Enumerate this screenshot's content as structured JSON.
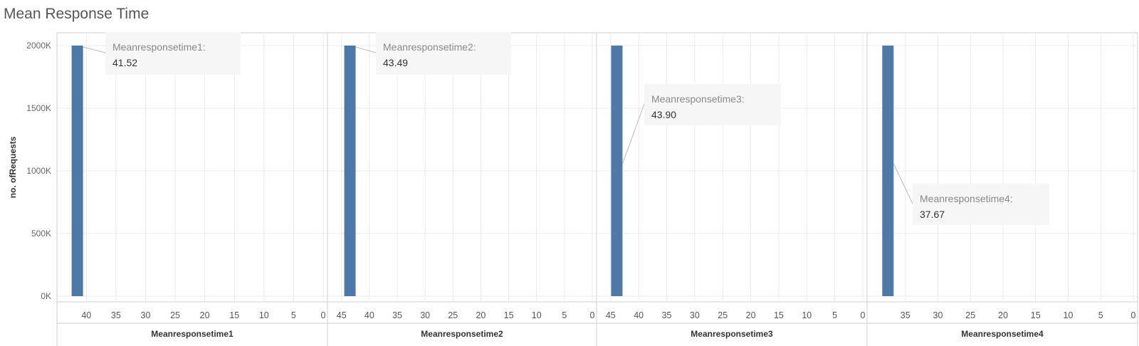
{
  "chart_data": {
    "type": "bar",
    "title": "Mean Response Time",
    "ylabel": "no. ofRequests",
    "yticks": [
      "0K",
      "500K",
      "1000K",
      "1500K",
      "2000K"
    ],
    "ylim": [
      0,
      2000
    ],
    "grid": true,
    "panels": [
      {
        "xlabel": "Meanresponsetime1",
        "xlim": [
          44,
          0
        ],
        "xticks": [
          "40",
          "35",
          "30",
          "25",
          "20",
          "15",
          "10",
          "5",
          "0"
        ],
        "bar": {
          "x": 41.52,
          "value": 2000
        },
        "annotation": {
          "name": "Meanresponsetime1:",
          "value": "41.52"
        }
      },
      {
        "xlabel": "Meanresponsetime2",
        "xlim": [
          46.5,
          0
        ],
        "xticks": [
          "45",
          "40",
          "35",
          "30",
          "25",
          "20",
          "15",
          "10",
          "5",
          "0"
        ],
        "bar": {
          "x": 43.49,
          "value": 2000
        },
        "annotation": {
          "name": "Meanresponsetime2:",
          "value": "43.49"
        }
      },
      {
        "xlabel": "Meanresponsetime3",
        "xlim": [
          46.5,
          0
        ],
        "xticks": [
          "45",
          "40",
          "35",
          "30",
          "25",
          "20",
          "15",
          "10",
          "5",
          "0"
        ],
        "bar": {
          "x": 43.9,
          "value": 2000
        },
        "annotation": {
          "name": "Meanresponsetime3:",
          "value": "43.90"
        }
      },
      {
        "xlabel": "Meanresponsetime4",
        "xlim": [
          40,
          0
        ],
        "xticks": [
          "35",
          "30",
          "25",
          "20",
          "15",
          "10",
          "5",
          "0"
        ],
        "bar": {
          "x": 37.67,
          "value": 2000
        },
        "annotation": {
          "name": "Meanresponsetime4:",
          "value": "37.67"
        }
      }
    ]
  },
  "colors": {
    "bar": "#4e79a7",
    "grid": "#ebebeb",
    "border": "#cfcfcf",
    "annotation_bg": "#f6f6f6"
  }
}
